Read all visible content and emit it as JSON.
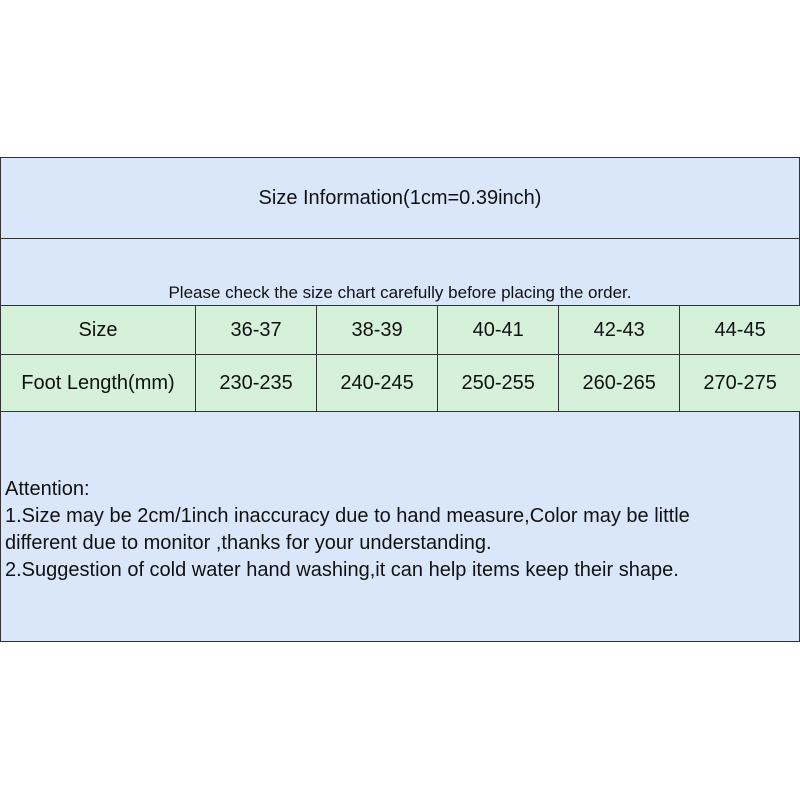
{
  "title": "Size Information(1cm=0.39inch)",
  "note": "Please check the size chart carefully before placing the order.",
  "table": {
    "rows": [
      {
        "label": "Size",
        "values": [
          "36-37",
          "38-39",
          "40-41",
          "42-43",
          "44-45"
        ]
      },
      {
        "label": "Foot Length(mm)",
        "values": [
          "230-235",
          "240-245",
          "250-255",
          "260-265",
          "270-275"
        ]
      }
    ]
  },
  "attention": {
    "heading": "Attention:",
    "lines": [
      "1.Size may be 2cm/1inch inaccuracy due to hand measure,Color may be little",
      "different due to monitor ,thanks for your understanding.",
      "2.Suggestion of cold water hand washing,it can help items keep their shape."
    ]
  },
  "colors": {
    "header_bg": "#dae7fb",
    "table_bg": "#d5f1da"
  }
}
